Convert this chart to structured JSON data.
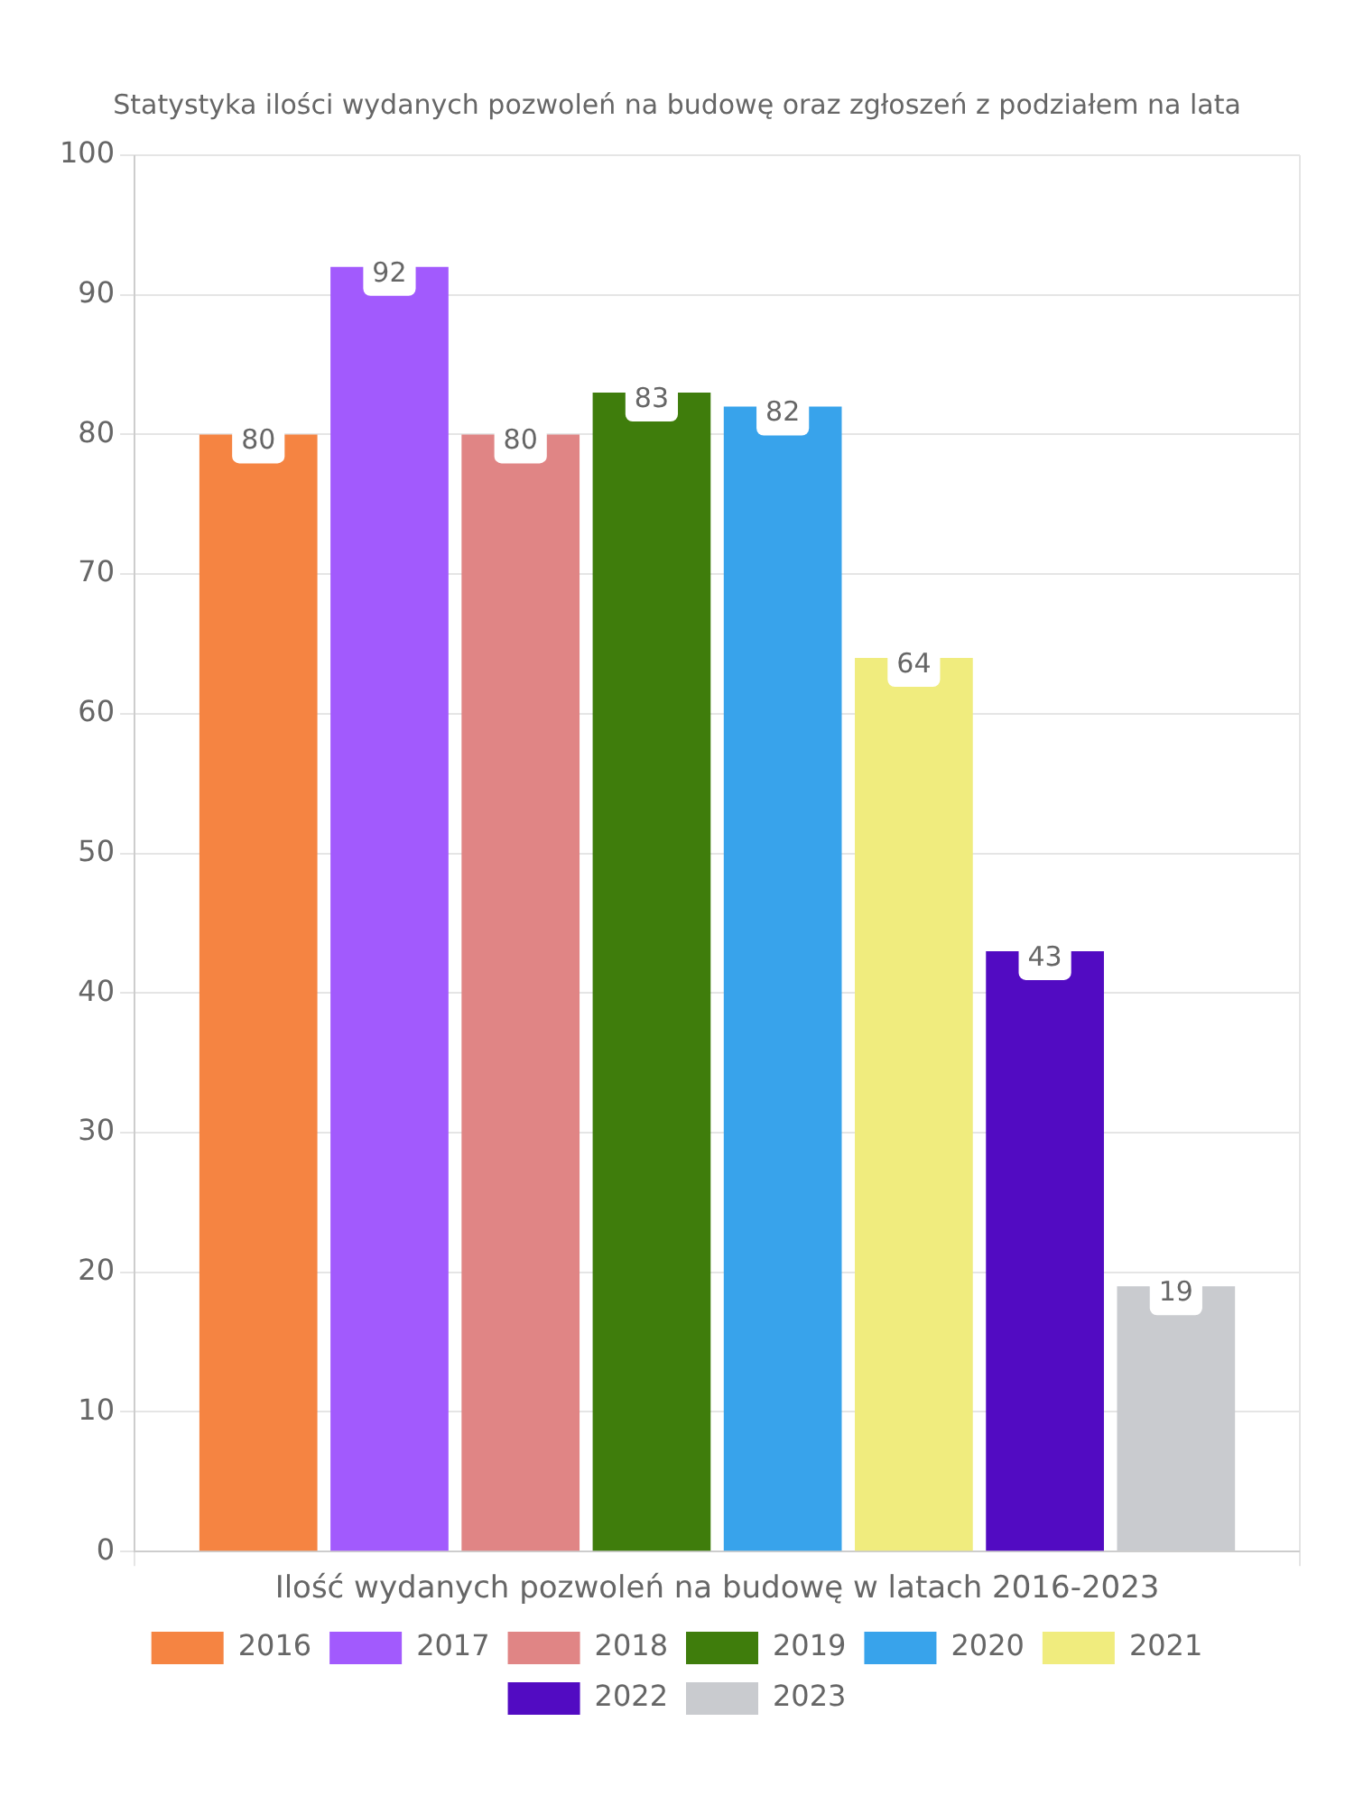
{
  "chart_data": {
    "type": "bar",
    "title": "Statystyka ilości wydanych pozwoleń na budowę oraz zgłoszeń z podziałem na lata",
    "categories": [
      "Ilość wydanych pozwoleń na budowę w latach 2016-2023"
    ],
    "series": [
      {
        "name": "2016",
        "color": "#f58442",
        "values": [
          80
        ]
      },
      {
        "name": "2017",
        "color": "#a25afd",
        "values": [
          92
        ]
      },
      {
        "name": "2018",
        "color": "#e08585",
        "values": [
          80
        ]
      },
      {
        "name": "2019",
        "color": "#3f7d0c",
        "values": [
          83
        ]
      },
      {
        "name": "2020",
        "color": "#38a3eb",
        "values": [
          82
        ]
      },
      {
        "name": "2021",
        "color": "#f0ec7e",
        "values": [
          64
        ]
      },
      {
        "name": "2022",
        "color": "#520bc2",
        "values": [
          43
        ]
      },
      {
        "name": "2023",
        "color": "#c9cbcf",
        "values": [
          19
        ]
      }
    ],
    "ylim": [
      0,
      100
    ],
    "yticks": [
      0,
      10,
      20,
      30,
      40,
      50,
      60,
      70,
      80,
      90,
      100
    ],
    "grid": true,
    "legend": "bottom",
    "data_labels": true
  }
}
